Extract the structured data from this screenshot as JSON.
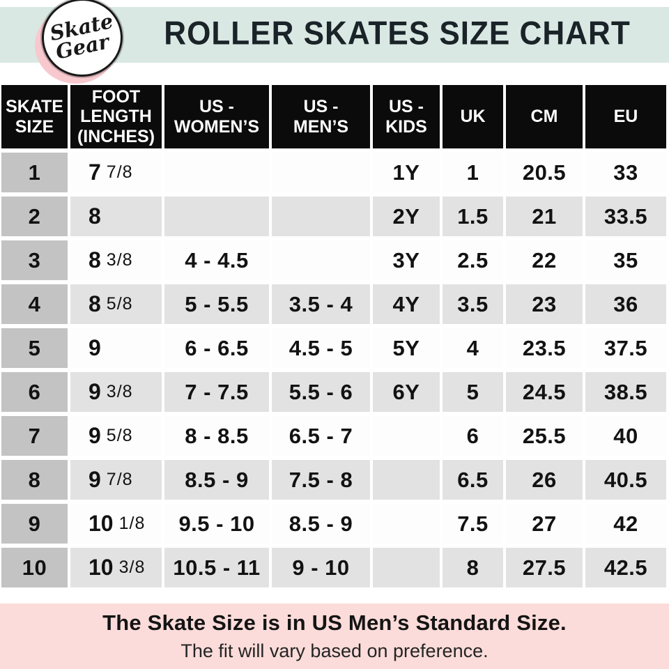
{
  "header": {
    "logo_line1": "Skate",
    "logo_line2": "Gear",
    "title": "ROLLER SKATES SIZE CHART"
  },
  "table_header": [
    "SKATE\nSIZE",
    "FOOT\nLENGTH\n(INCHES)",
    "US -\nWOMEN’S",
    "US -\nMEN’S",
    "US -\nKIDS",
    "UK",
    "CM",
    "EU"
  ],
  "chart_data": {
    "type": "table",
    "title": "ROLLER SKATES SIZE CHART",
    "columns": [
      "SKATE SIZE",
      "FOOT LENGTH (INCHES)",
      "US - WOMEN'S",
      "US - MEN'S",
      "US - KIDS",
      "UK",
      "CM",
      "EU"
    ],
    "rows": [
      {
        "size": "1",
        "foot": "7",
        "foot_frac": "7/8",
        "womens": "",
        "mens": "",
        "kids": "1Y",
        "uk": "1",
        "cm": "20.5",
        "eu": "33"
      },
      {
        "size": "2",
        "foot": "8",
        "foot_frac": "",
        "womens": "",
        "mens": "",
        "kids": "2Y",
        "uk": "1.5",
        "cm": "21",
        "eu": "33.5"
      },
      {
        "size": "3",
        "foot": "8",
        "foot_frac": "3/8",
        "womens": "4 - 4.5",
        "mens": "",
        "kids": "3Y",
        "uk": "2.5",
        "cm": "22",
        "eu": "35"
      },
      {
        "size": "4",
        "foot": "8",
        "foot_frac": "5/8",
        "womens": "5 - 5.5",
        "mens": "3.5 - 4",
        "kids": "4Y",
        "uk": "3.5",
        "cm": "23",
        "eu": "36"
      },
      {
        "size": "5",
        "foot": "9",
        "foot_frac": "",
        "womens": "6 - 6.5",
        "mens": "4.5 - 5",
        "kids": "5Y",
        "uk": "4",
        "cm": "23.5",
        "eu": "37.5"
      },
      {
        "size": "6",
        "foot": "9",
        "foot_frac": "3/8",
        "womens": "7 - 7.5",
        "mens": "5.5 - 6",
        "kids": "6Y",
        "uk": "5",
        "cm": "24.5",
        "eu": "38.5"
      },
      {
        "size": "7",
        "foot": "9",
        "foot_frac": "5/8",
        "womens": "8 - 8.5",
        "mens": "6.5 - 7",
        "kids": "",
        "uk": "6",
        "cm": "25.5",
        "eu": "40"
      },
      {
        "size": "8",
        "foot": "9",
        "foot_frac": "7/8",
        "womens": "8.5 - 9",
        "mens": "7.5 - 8",
        "kids": "",
        "uk": "6.5",
        "cm": "26",
        "eu": "40.5"
      },
      {
        "size": "9",
        "foot": "10",
        "foot_frac": "1/8",
        "womens": "9.5 - 10",
        "mens": "8.5 - 9",
        "kids": "",
        "uk": "7.5",
        "cm": "27",
        "eu": "42"
      },
      {
        "size": "10",
        "foot": "10",
        "foot_frac": "3/8",
        "womens": "10.5 - 11",
        "mens": "9 - 10",
        "kids": "",
        "uk": "8",
        "cm": "27.5",
        "eu": "42.5"
      }
    ]
  },
  "footer": {
    "line1": "The Skate Size is in US Men’s Standard Size.",
    "line2": "The fit will vary based on preference."
  },
  "colors": {
    "mint_band": "#d9e8e3",
    "footer_pink": "#fbdcda",
    "logo_pink": "#f7c9ce",
    "header_black": "#0b0b0b",
    "first_column_gray": "#c3c3c3",
    "alt_row_gray": "#e2e2e2"
  }
}
